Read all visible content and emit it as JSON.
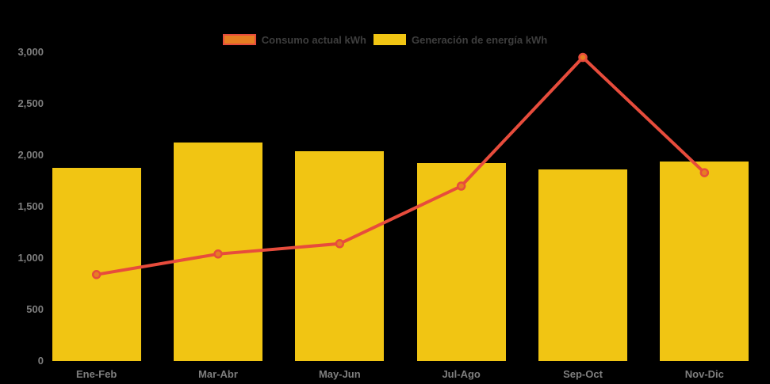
{
  "chart_data": {
    "type": "bar",
    "subtype": "combo-bar-line",
    "categories": [
      "Ene-Feb",
      "Mar-Abr",
      "May-Jun",
      "Jul-Ago",
      "Sep-Oct",
      "Nov-Dic"
    ],
    "series": [
      {
        "name": "Consumo actual kWh",
        "type": "line",
        "values": [
          840,
          1040,
          1140,
          1700,
          2950,
          1830
        ],
        "color": "#E74C3C",
        "marker_color": "#E67E22"
      },
      {
        "name": "Generación de energía kWh",
        "type": "bar",
        "values": [
          1880,
          2120,
          2040,
          1920,
          1860,
          1940
        ],
        "color": "#F1C513"
      }
    ],
    "title": "",
    "xlabel": "",
    "ylabel": "",
    "ylim": [
      0,
      3000
    ],
    "yticks": [
      0,
      500,
      1000,
      1500,
      2000,
      2500,
      3000
    ],
    "ytick_labels": [
      "0",
      "500",
      "1,000",
      "1,500",
      "2,000",
      "2,500",
      "3,000"
    ],
    "grid": false,
    "legend_position": "top-center",
    "background_color": "#000000",
    "axis_label_color": "#7E7E7E",
    "legend_label_color": "#3E3E3E"
  }
}
